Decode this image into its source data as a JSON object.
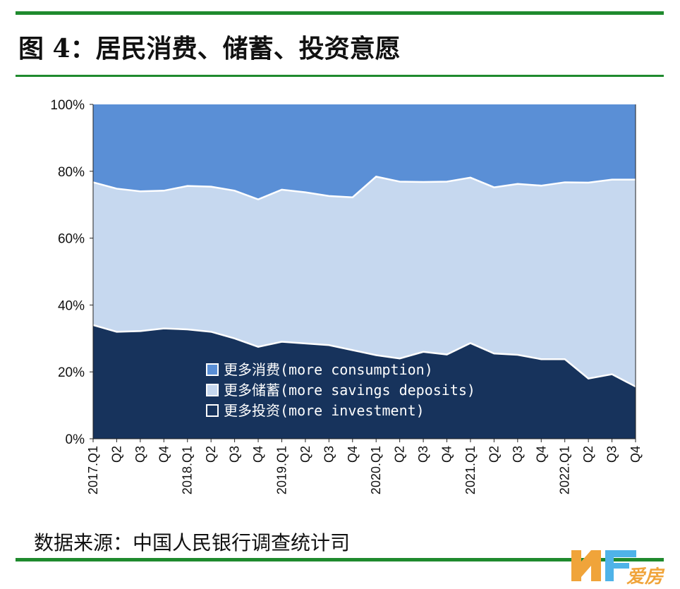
{
  "figure": {
    "title": "图 4：居民消费、储蓄、投资意愿",
    "source": "数据来源：中国人民银行调查统计司"
  },
  "watermark": {
    "text": "爱房"
  },
  "colors": {
    "consumption": "#5a8fd6",
    "savings": "#c6d8ef",
    "investment": "#17335c",
    "rule": "#1f8a2e"
  },
  "chart_data": {
    "type": "area",
    "stacked": true,
    "categories": [
      "2017.Q1",
      "Q2",
      "Q3",
      "Q4",
      "2018.Q1",
      "Q2",
      "Q3",
      "Q4",
      "2019.Q1",
      "Q2",
      "Q3",
      "Q4",
      "2020.Q1",
      "Q2",
      "Q3",
      "Q4",
      "2021.Q1",
      "Q2",
      "Q3",
      "Q4",
      "2022.Q1",
      "Q2",
      "Q3",
      "Q4"
    ],
    "ylim": [
      0,
      100
    ],
    "yticks": [
      "0%",
      "20%",
      "40%",
      "60%",
      "80%",
      "100%"
    ],
    "series": [
      {
        "name": "更多投资(more investment)",
        "key": "investment",
        "values": [
          34,
          32,
          32.2,
          33,
          32.7,
          32,
          30,
          27.5,
          29,
          28.5,
          28,
          26.5,
          25,
          24,
          26,
          25.2,
          28.6,
          25.5,
          25.1,
          23.8,
          23.8,
          18,
          19.3,
          15.6
        ]
      },
      {
        "name": "更多储蓄(more savings deposits)",
        "key": "savings",
        "values": [
          42.7,
          42.8,
          41.8,
          41.2,
          42.9,
          43.4,
          44.2,
          44.1,
          45.5,
          45.2,
          44.6,
          45.7,
          53.4,
          52.9,
          50.8,
          51.7,
          49.5,
          49.7,
          51.1,
          51.9,
          52.9,
          58.6,
          58.2,
          61.9
        ]
      },
      {
        "name": "更多消费(more consumption)",
        "key": "consumption",
        "values": [
          23.3,
          25.2,
          26,
          25.8,
          24.4,
          24.6,
          25.8,
          28.4,
          25.5,
          26.3,
          27.4,
          27.8,
          21.6,
          23.1,
          23.2,
          23.1,
          21.9,
          24.8,
          23.8,
          24.3,
          23.3,
          23.4,
          22.5,
          22.5
        ]
      }
    ],
    "legend_position": "inside-bottom-center",
    "grid": false
  }
}
